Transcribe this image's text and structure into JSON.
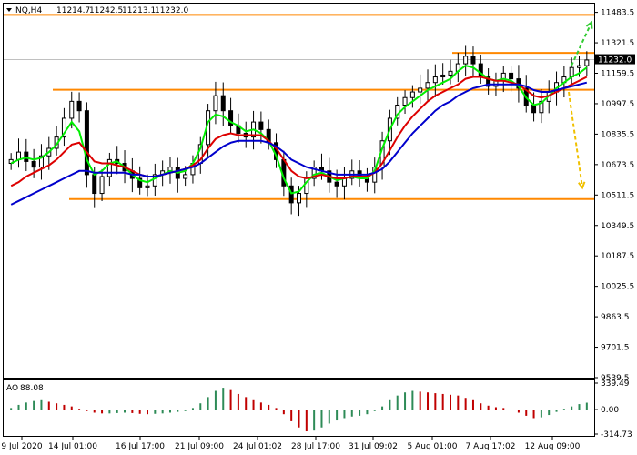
{
  "header": {
    "symbol": "NQ,H4",
    "open": "11214.7",
    "high": "11242.5",
    "low": "11213.1",
    "close": "11232.0"
  },
  "indicator": {
    "name": "AO",
    "value": "88.08"
  },
  "colors": {
    "bull_candle": "#000000",
    "ma_fast": "#00ee00",
    "ma_mid": "#dd0000",
    "ma_slow": "#0000cc",
    "level_line": "#ff8800",
    "forecast_up": "#33cc33",
    "forecast_down": "#f0c000",
    "ao_up": "#2e8b57",
    "ao_down": "#c00000",
    "price_tag_bg": "#000000"
  },
  "chart_data": [
    {
      "type": "line",
      "subtype": "candlestick",
      "title": "NQ,H4",
      "x_ticks": [
        "9 Jul 2020",
        "14 Jul 01:00",
        "16 Jul 17:00",
        "21 Jul 09:00",
        "24 Jul 01:02",
        "28 Jul 17:00",
        "31 Jul 09:02",
        "5 Aug 01:00",
        "7 Aug 17:02",
        "12 Aug 09:00"
      ],
      "y_ticks": [
        "11483.5",
        "11321.5",
        "11159.5",
        "10997.5",
        "10835.5",
        "10673.5",
        "10511.5",
        "10349.5",
        "10187.5",
        "10025.5",
        "9863.5",
        "9701.5",
        "9539.5"
      ],
      "ylim": [
        9539.5,
        11530
      ],
      "current_price": "11232.0",
      "horizontal_levels": [
        11470,
        11268,
        11072,
        10490
      ],
      "forecast_arrows": [
        {
          "direction": "up",
          "from": 11200,
          "to": 11430
        },
        {
          "direction": "down",
          "from": 11060,
          "to": 10550
        }
      ],
      "series": [
        {
          "name": "",
          "role": "close",
          "values": [
            10700,
            10740,
            10690,
            10660,
            10720,
            10760,
            10820,
            10920,
            11010,
            10960,
            10620,
            10520,
            10610,
            10700,
            10680,
            10640,
            10600,
            10550,
            10560,
            10620,
            10640,
            10660,
            10600,
            10620,
            10680,
            10780,
            10960,
            11040,
            10960,
            10880,
            10840,
            10820,
            10900,
            10860,
            10790,
            10700,
            10560,
            10470,
            10520,
            10600,
            10660,
            10640,
            10580,
            10560,
            10600,
            10640,
            10600,
            10580,
            10660,
            10800,
            10920,
            10990,
            11030,
            11060,
            11080,
            11110,
            11140,
            11150,
            11170,
            11210,
            11250,
            11210,
            11140,
            11090,
            11120,
            11160,
            11130,
            11080,
            10990,
            10950,
            11010,
            11060,
            11110,
            11140,
            11190,
            11200,
            11230
          ]
        },
        {
          "name": "",
          "role": "ma_fast",
          "values": [
            10680,
            10700,
            10710,
            10700,
            10710,
            10740,
            10780,
            10840,
            10900,
            10850,
            10700,
            10620,
            10640,
            10680,
            10690,
            10660,
            10620,
            10590,
            10580,
            10600,
            10620,
            10640,
            10630,
            10640,
            10680,
            10760,
            10900,
            10940,
            10930,
            10900,
            10880,
            10850,
            10860,
            10840,
            10800,
            10720,
            10600,
            10520,
            10530,
            10580,
            10620,
            10630,
            10610,
            10590,
            10600,
            10610,
            10600,
            10600,
            10640,
            10760,
            10860,
            10940,
            10980,
            11010,
            11040,
            11070,
            11090,
            11110,
            11130,
            11170,
            11200,
            11190,
            11160,
            11130,
            11120,
            11130,
            11120,
            11090,
            11030,
            10990,
            11000,
            11040,
            11080,
            11110,
            11140,
            11160,
            11190
          ]
        },
        {
          "name": "",
          "role": "ma_mid",
          "values": [
            10560,
            10580,
            10610,
            10630,
            10650,
            10670,
            10700,
            10740,
            10780,
            10790,
            10740,
            10690,
            10680,
            10680,
            10670,
            10660,
            10640,
            10620,
            10610,
            10610,
            10620,
            10630,
            10640,
            10650,
            10670,
            10700,
            10760,
            10810,
            10830,
            10840,
            10830,
            10830,
            10830,
            10830,
            10800,
            10760,
            10700,
            10640,
            10610,
            10600,
            10610,
            10620,
            10610,
            10600,
            10600,
            10610,
            10610,
            10610,
            10630,
            10680,
            10750,
            10820,
            10880,
            10930,
            10970,
            11010,
            11040,
            11060,
            11080,
            11100,
            11130,
            11140,
            11140,
            11130,
            11120,
            11120,
            11110,
            11100,
            11070,
            11040,
            11030,
            11040,
            11060,
            11080,
            11100,
            11120,
            11140
          ]
        },
        {
          "name": "",
          "role": "ma_slow",
          "values": [
            10460,
            10480,
            10500,
            10520,
            10540,
            10560,
            10580,
            10600,
            10620,
            10640,
            10640,
            10630,
            10630,
            10630,
            10630,
            10630,
            10620,
            10620,
            10610,
            10610,
            10620,
            10630,
            10640,
            10650,
            10660,
            10680,
            10710,
            10740,
            10770,
            10790,
            10800,
            10800,
            10800,
            10800,
            10790,
            10770,
            10740,
            10700,
            10680,
            10660,
            10650,
            10640,
            10630,
            10620,
            10620,
            10620,
            10620,
            10620,
            10630,
            10650,
            10690,
            10740,
            10790,
            10840,
            10880,
            10920,
            10960,
            10990,
            11010,
            11040,
            11060,
            11080,
            11090,
            11100,
            11100,
            11100,
            11100,
            11100,
            11090,
            11070,
            11060,
            11060,
            11070,
            11080,
            11090,
            11100,
            11110
          ]
        }
      ],
      "ao": {
        "value_label": "88.08",
        "y_ticks": [
          "339.49",
          "0.00",
          "-314.73"
        ],
        "ylim": [
          -314.73,
          339.49
        ],
        "values": [
          20,
          60,
          90,
          110,
          120,
          100,
          80,
          60,
          40,
          10,
          -20,
          -40,
          -50,
          -50,
          -45,
          -40,
          -45,
          -55,
          -60,
          -55,
          -50,
          -40,
          -30,
          -20,
          20,
          80,
          160,
          240,
          280,
          250,
          200,
          160,
          120,
          90,
          60,
          20,
          -60,
          -150,
          -230,
          -280,
          -270,
          -230,
          -180,
          -140,
          -110,
          -90,
          -80,
          -60,
          -20,
          40,
          120,
          180,
          220,
          240,
          230,
          220,
          210,
          200,
          190,
          180,
          150,
          120,
          80,
          50,
          30,
          20,
          0,
          -40,
          -80,
          -110,
          -100,
          -70,
          -30,
          10,
          40,
          70,
          88
        ]
      }
    }
  ]
}
